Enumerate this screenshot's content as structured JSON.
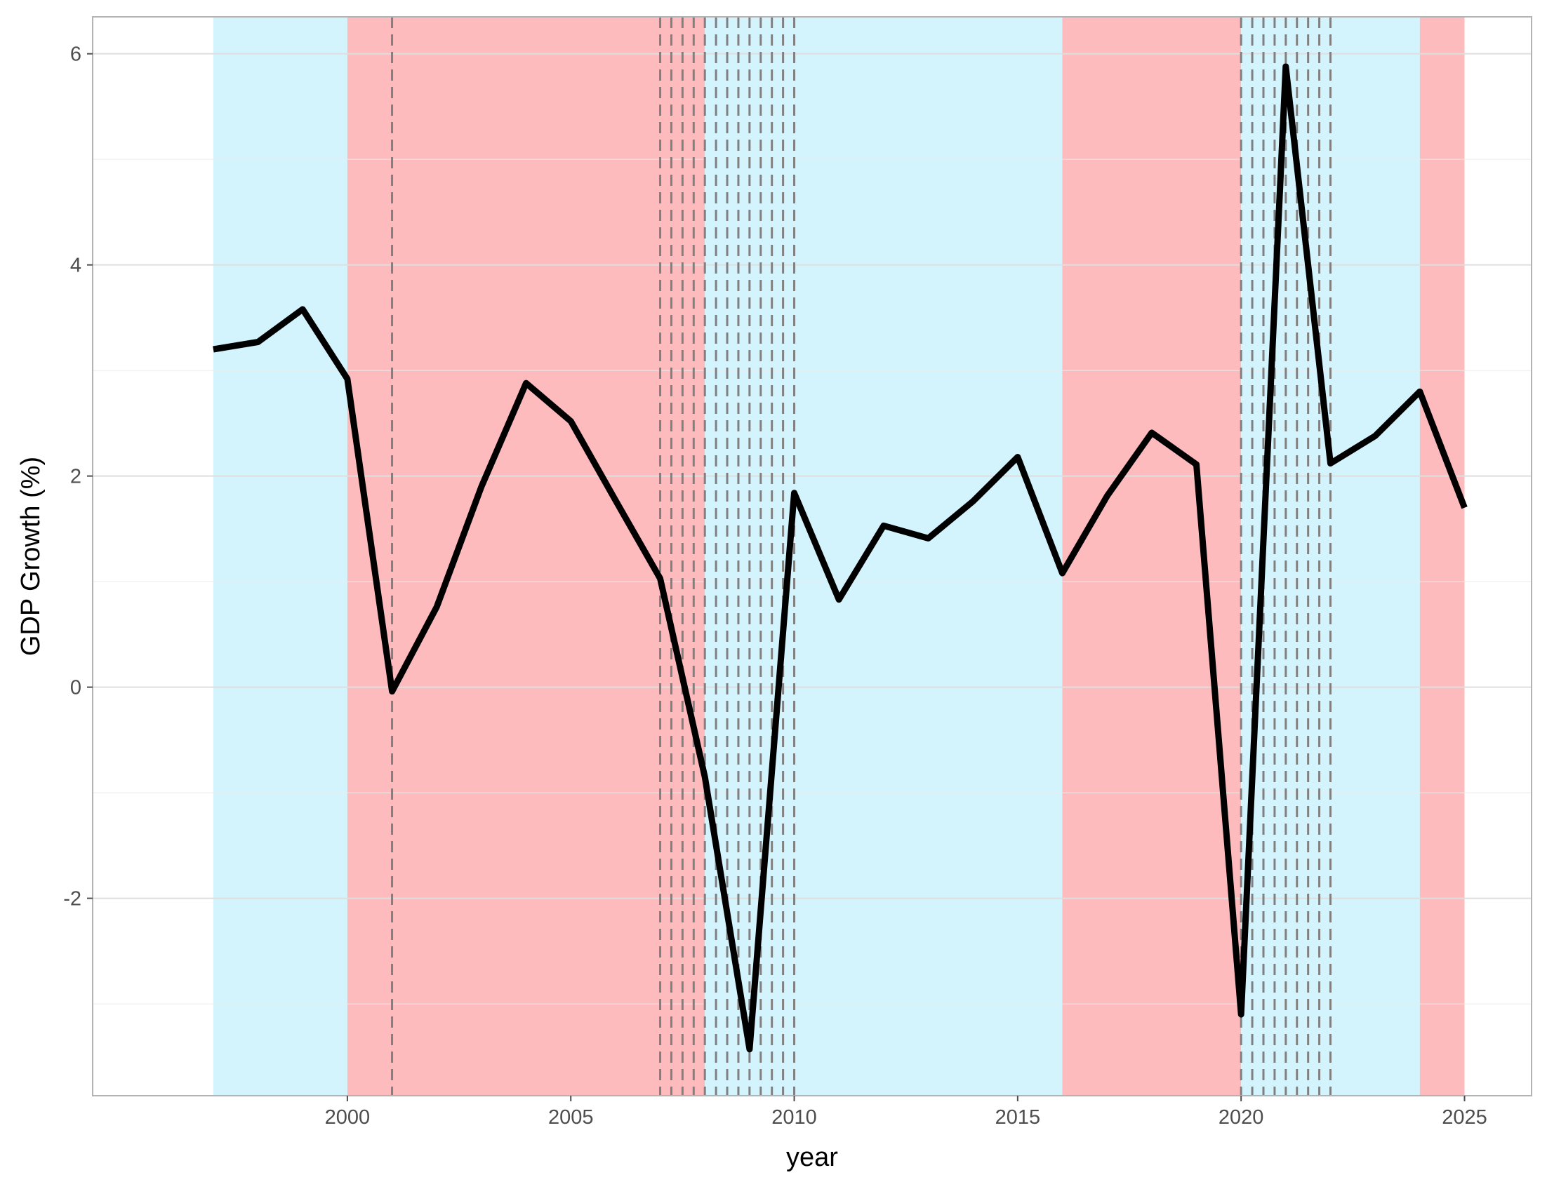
{
  "chart_data": {
    "type": "line",
    "title": "",
    "xlabel": "year",
    "ylabel": "GDP Growth (%)",
    "xlim": [
      1994.3,
      2026.5
    ],
    "ylim": [
      -3.87,
      6.35
    ],
    "x_ticks": [
      2000,
      2005,
      2010,
      2015,
      2020,
      2025
    ],
    "x_tick_labels": [
      "2000",
      "2005",
      "2010",
      "2015",
      "2020",
      "2025"
    ],
    "y_ticks": [
      -2,
      0,
      2,
      4,
      6
    ],
    "y_tick_labels": [
      "-2",
      "0",
      "2",
      "4",
      "6"
    ],
    "y_minor_ticks": [
      -3,
      -1,
      1,
      3,
      5
    ],
    "grid": true,
    "legend": "none",
    "series": [
      {
        "x": [
          1997,
          1998,
          1999,
          2000,
          2001,
          2002,
          2003,
          2004,
          2005,
          2006,
          2007,
          2008,
          2009,
          2010,
          2011,
          2012,
          2013,
          2014,
          2015,
          2016,
          2017,
          2018,
          2019,
          2020,
          2021,
          2022,
          2023,
          2024,
          2025
        ],
        "y": [
          3.2,
          3.27,
          3.58,
          2.92,
          -0.04,
          0.76,
          1.9,
          2.88,
          2.52,
          1.77,
          1.03,
          -0.85,
          -3.43,
          1.84,
          0.83,
          1.53,
          1.41,
          1.76,
          2.18,
          1.08,
          1.81,
          2.41,
          2.11,
          -3.1,
          5.88,
          2.12,
          2.38,
          2.8,
          1.7
        ],
        "color": "#000000"
      }
    ],
    "shaded_regions": [
      {
        "start": 1997,
        "end": 2000,
        "color": "#d3f3fd"
      },
      {
        "start": 2000,
        "end": 2008,
        "color": "#fdbbbe"
      },
      {
        "start": 2008,
        "end": 2016,
        "color": "#d3f3fd"
      },
      {
        "start": 2016,
        "end": 2020,
        "color": "#fdbbbe"
      },
      {
        "start": 2020,
        "end": 2024,
        "color": "#d3f3fd"
      },
      {
        "start": 2024,
        "end": 2025,
        "color": "#fdbbbe"
      }
    ],
    "reference_lines_x": [
      2001,
      2007,
      2007.25,
      2007.5,
      2007.75,
      2008,
      2008.25,
      2008.5,
      2008.75,
      2009,
      2009.25,
      2009.5,
      2009.75,
      2010,
      2020,
      2020.25,
      2020.5,
      2020.75,
      2021,
      2021.25,
      2021.5,
      2021.75,
      2022
    ],
    "reference_line_color": "#808080"
  }
}
